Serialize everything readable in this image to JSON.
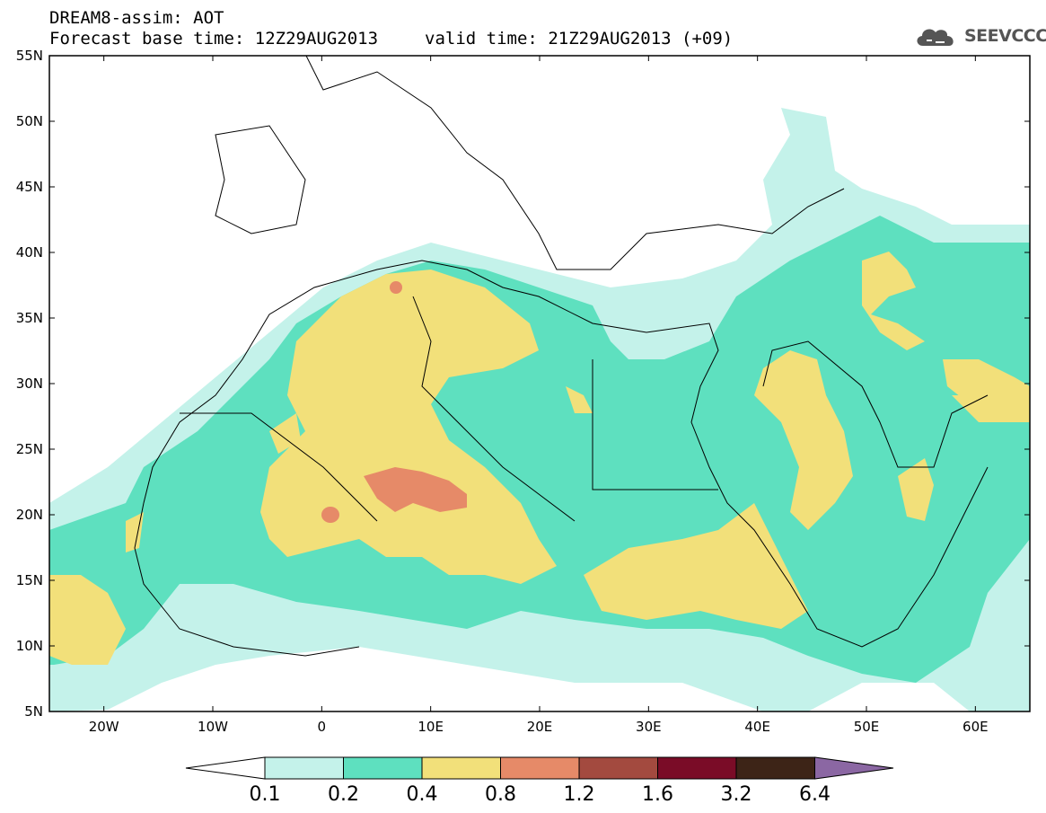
{
  "header": {
    "title_line1": "DREAM8-assim: AOT",
    "base_time": "Forecast base time: 12Z29AUG2013",
    "valid_time": "valid time: 21Z29AUG2013 (+09)"
  },
  "logo": {
    "text": "SEEVCCC",
    "icon": "cloud-icon"
  },
  "map": {
    "lon_range": [
      -25,
      65
    ],
    "lat_range": [
      5,
      55
    ],
    "lat_ticks": [
      "55N",
      "50N",
      "45N",
      "40N",
      "35N",
      "30N",
      "25N",
      "20N",
      "15N",
      "10N",
      "5N"
    ],
    "lon_ticks": [
      "20W",
      "10W",
      "0",
      "10E",
      "20E",
      "30E",
      "40E",
      "50E",
      "60E"
    ]
  },
  "legend": {
    "levels": [
      "0.1",
      "0.2",
      "0.4",
      "0.8",
      "1.2",
      "1.6",
      "3.2",
      "6.4"
    ],
    "colors": [
      "#ffffff",
      "#c4f2ea",
      "#5ee0bf",
      "#f2e07a",
      "#e68a68",
      "#a34a3f",
      "#7a0c27",
      "#3d2417",
      "#8b67a3"
    ]
  },
  "colors": {
    "aot_0_1": "#c4f2ea",
    "aot_0_2": "#5ee0bf",
    "aot_0_4": "#f2e07a",
    "aot_0_8": "#e68a68",
    "aot_1_2": "#a34a3f"
  }
}
